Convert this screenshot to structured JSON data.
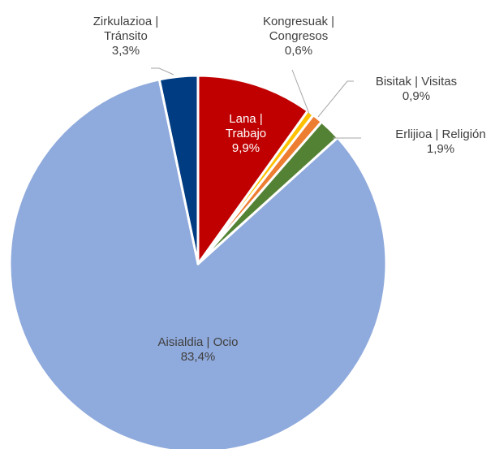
{
  "chart_data": {
    "type": "pie",
    "categories": [
      "Lana | Trabajo",
      "Kongresuak | Congresos",
      "Bisitak | Visitas",
      "Erlijioa | Religión",
      "Aisialdia | Ocio",
      "Zirkulazioa | Tránsito"
    ],
    "values": [
      9.9,
      0.6,
      0.9,
      1.9,
      83.4,
      3.3
    ],
    "value_labels": [
      "9,9%",
      "0,6%",
      "0,9%",
      "1,9%",
      "83,4%",
      "3,3%"
    ],
    "colors": [
      "#c00000",
      "#ffc000",
      "#ed7d31",
      "#548235",
      "#8faadc",
      "#003c82"
    ]
  }
}
